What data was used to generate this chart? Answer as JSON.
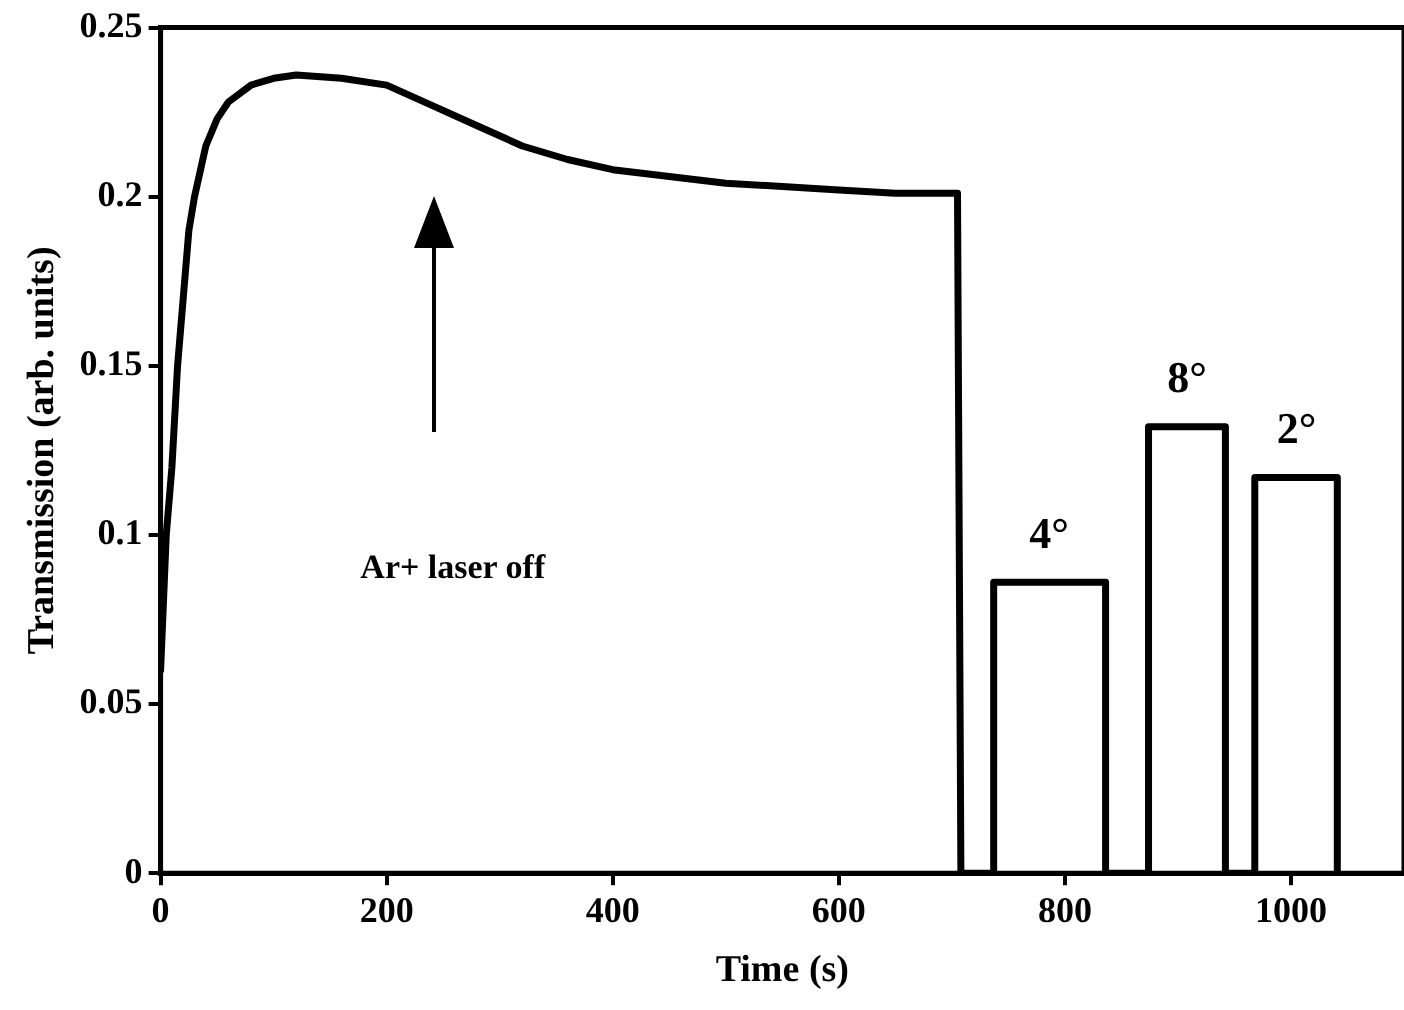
{
  "chart_data": {
    "type": "line",
    "xlabel": "Time (s)",
    "ylabel": "Transmission (arb. units)",
    "xlim": [
      0,
      1100
    ],
    "xticks": [
      0,
      200,
      400,
      600,
      800,
      1000
    ],
    "ylim": [
      0,
      0.25
    ],
    "yticks": [
      0,
      0.05,
      0.1,
      0.15,
      0.2,
      0.25
    ],
    "grid": false,
    "legend": false,
    "marker": "none",
    "line_style": "solid",
    "series": [
      {
        "color": "#000000",
        "x": [
          0,
          5,
          10,
          15,
          20,
          25,
          30,
          40,
          50,
          60,
          80,
          100,
          120,
          160,
          200,
          240,
          280,
          320,
          360,
          400,
          450,
          500,
          550,
          600,
          650,
          705,
          708,
          737,
          737,
          836,
          836,
          874,
          874,
          942,
          942,
          968,
          968,
          1041,
          1041
        ],
        "values": [
          0.06,
          0.1,
          0.12,
          0.15,
          0.17,
          0.19,
          0.2,
          0.215,
          0.223,
          0.228,
          0.233,
          0.235,
          0.236,
          0.235,
          0.233,
          0.227,
          0.221,
          0.215,
          0.211,
          0.208,
          0.206,
          0.204,
          0.203,
          0.202,
          0.201,
          0.201,
          0,
          0,
          0.086,
          0.086,
          0,
          0,
          0.132,
          0.132,
          0,
          0,
          0.117,
          0.117,
          0
        ]
      }
    ],
    "annotations": [
      "Ar+ laser off",
      {
        "text": "4°",
        "x": 786,
        "y": 0.086
      },
      {
        "text": "8°",
        "x": 908,
        "y": 0.132
      },
      {
        "text": "2°",
        "x": 1005,
        "y": 0.117
      }
    ]
  }
}
